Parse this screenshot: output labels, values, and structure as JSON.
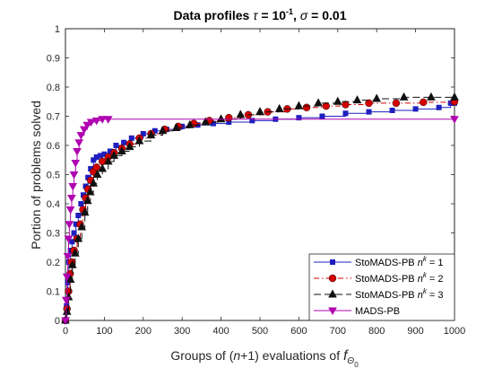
{
  "chart_data": {
    "type": "line",
    "title": "Data profiles",
    "title_tau": "τ",
    "title_tau_value_base": "10",
    "title_tau_value_exp": "-1",
    "title_sigma": "σ",
    "title_sigma_value": "0.01",
    "xlabel_parts": [
      "Groups of (",
      "n",
      "+1) evaluations of ",
      "f",
      "Θ",
      "0"
    ],
    "ylabel": "Portion of problems solved",
    "xlim": [
      0,
      1000
    ],
    "ylim": [
      0,
      1
    ],
    "xticks": [
      0,
      100,
      200,
      300,
      400,
      500,
      600,
      700,
      800,
      900,
      1000
    ],
    "yticks": [
      0,
      0.1,
      0.2,
      0.3,
      0.4,
      0.5,
      0.6,
      0.7,
      0.8,
      0.9,
      1
    ],
    "legend_position": "bottom-right",
    "series": [
      {
        "name": "StoMADS-PB n^k = 1",
        "name_parts": [
          "StoMADS-PB ",
          "n",
          "k",
          " = 1"
        ],
        "color": "#1f1fbf",
        "dash": "",
        "marker": "square",
        "points": [
          [
            0,
            0
          ],
          [
            3,
            0.05
          ],
          [
            6,
            0.13
          ],
          [
            9,
            0.2
          ],
          [
            13,
            0.24
          ],
          [
            17,
            0.27
          ],
          [
            22,
            0.3
          ],
          [
            27,
            0.33
          ],
          [
            33,
            0.36
          ],
          [
            40,
            0.4
          ],
          [
            46,
            0.43
          ],
          [
            52,
            0.46
          ],
          [
            58,
            0.49
          ],
          [
            65,
            0.52
          ],
          [
            72,
            0.55
          ],
          [
            80,
            0.56
          ],
          [
            90,
            0.565
          ],
          [
            100,
            0.57
          ],
          [
            115,
            0.58
          ],
          [
            130,
            0.6
          ],
          [
            150,
            0.61
          ],
          [
            170,
            0.625
          ],
          [
            200,
            0.64
          ],
          [
            230,
            0.65
          ],
          [
            260,
            0.655
          ],
          [
            300,
            0.665
          ],
          [
            340,
            0.67
          ],
          [
            380,
            0.675
          ],
          [
            420,
            0.68
          ],
          [
            480,
            0.685
          ],
          [
            540,
            0.69
          ],
          [
            600,
            0.695
          ],
          [
            660,
            0.7
          ],
          [
            720,
            0.71
          ],
          [
            780,
            0.715
          ],
          [
            840,
            0.72
          ],
          [
            900,
            0.725
          ],
          [
            960,
            0.73
          ],
          [
            990,
            0.745
          ],
          [
            1000,
            0.745
          ]
        ]
      },
      {
        "name": "StoMADS-PB n^k = 2",
        "name_parts": [
          "StoMADS-PB ",
          "n",
          "k",
          " = 2"
        ],
        "color": "#d40000",
        "dash": "6,3,1.5,3",
        "marker": "circle",
        "points": [
          [
            0,
            0
          ],
          [
            4,
            0.04
          ],
          [
            8,
            0.1
          ],
          [
            12,
            0.16
          ],
          [
            16,
            0.2
          ],
          [
            22,
            0.24
          ],
          [
            30,
            0.28
          ],
          [
            38,
            0.33
          ],
          [
            45,
            0.38
          ],
          [
            52,
            0.42
          ],
          [
            58,
            0.45
          ],
          [
            65,
            0.48
          ],
          [
            72,
            0.51
          ],
          [
            80,
            0.525
          ],
          [
            95,
            0.545
          ],
          [
            110,
            0.56
          ],
          [
            125,
            0.575
          ],
          [
            145,
            0.59
          ],
          [
            165,
            0.605
          ],
          [
            190,
            0.625
          ],
          [
            220,
            0.64
          ],
          [
            255,
            0.655
          ],
          [
            290,
            0.665
          ],
          [
            330,
            0.675
          ],
          [
            370,
            0.685
          ],
          [
            420,
            0.695
          ],
          [
            470,
            0.705
          ],
          [
            520,
            0.715
          ],
          [
            570,
            0.725
          ],
          [
            620,
            0.73
          ],
          [
            670,
            0.735
          ],
          [
            720,
            0.74
          ],
          [
            780,
            0.745
          ],
          [
            850,
            0.745
          ],
          [
            920,
            0.748
          ],
          [
            1000,
            0.75
          ]
        ]
      },
      {
        "name": "StoMADS-PB n^k = 3",
        "name_parts": [
          "StoMADS-PB ",
          "n",
          "k",
          " = 3"
        ],
        "color": "#111111",
        "dash": "8,4",
        "marker": "triangle",
        "points": [
          [
            0,
            0
          ],
          [
            4,
            0.03
          ],
          [
            8,
            0.08
          ],
          [
            13,
            0.14
          ],
          [
            18,
            0.19
          ],
          [
            25,
            0.23
          ],
          [
            33,
            0.28
          ],
          [
            42,
            0.32
          ],
          [
            50,
            0.37
          ],
          [
            57,
            0.41
          ],
          [
            64,
            0.44
          ],
          [
            72,
            0.47
          ],
          [
            82,
            0.5
          ],
          [
            95,
            0.52
          ],
          [
            110,
            0.545
          ],
          [
            125,
            0.565
          ],
          [
            145,
            0.58
          ],
          [
            165,
            0.595
          ],
          [
            190,
            0.615
          ],
          [
            220,
            0.635
          ],
          [
            250,
            0.65
          ],
          [
            285,
            0.66
          ],
          [
            320,
            0.67
          ],
          [
            360,
            0.68
          ],
          [
            400,
            0.69
          ],
          [
            450,
            0.705
          ],
          [
            500,
            0.715
          ],
          [
            550,
            0.725
          ],
          [
            600,
            0.735
          ],
          [
            650,
            0.745
          ],
          [
            700,
            0.75
          ],
          [
            750,
            0.755
          ],
          [
            800,
            0.76
          ],
          [
            870,
            0.765
          ],
          [
            940,
            0.765
          ],
          [
            1000,
            0.765
          ]
        ]
      },
      {
        "name": "MADS-PB",
        "name_parts": [
          "MADS-PB",
          "",
          "",
          ""
        ],
        "color": "#b000b0",
        "dash": "",
        "marker": "triangle-down",
        "points": [
          [
            0,
            0
          ],
          [
            2,
            0.07
          ],
          [
            4,
            0.15
          ],
          [
            6,
            0.22
          ],
          [
            8,
            0.28
          ],
          [
            10,
            0.33
          ],
          [
            13,
            0.38
          ],
          [
            16,
            0.42
          ],
          [
            19,
            0.46
          ],
          [
            22,
            0.5
          ],
          [
            26,
            0.54
          ],
          [
            30,
            0.58
          ],
          [
            35,
            0.61
          ],
          [
            40,
            0.635
          ],
          [
            48,
            0.655
          ],
          [
            56,
            0.67
          ],
          [
            66,
            0.68
          ],
          [
            80,
            0.685
          ],
          [
            95,
            0.69
          ],
          [
            110,
            0.69
          ],
          [
            1000,
            0.69
          ]
        ]
      }
    ]
  }
}
